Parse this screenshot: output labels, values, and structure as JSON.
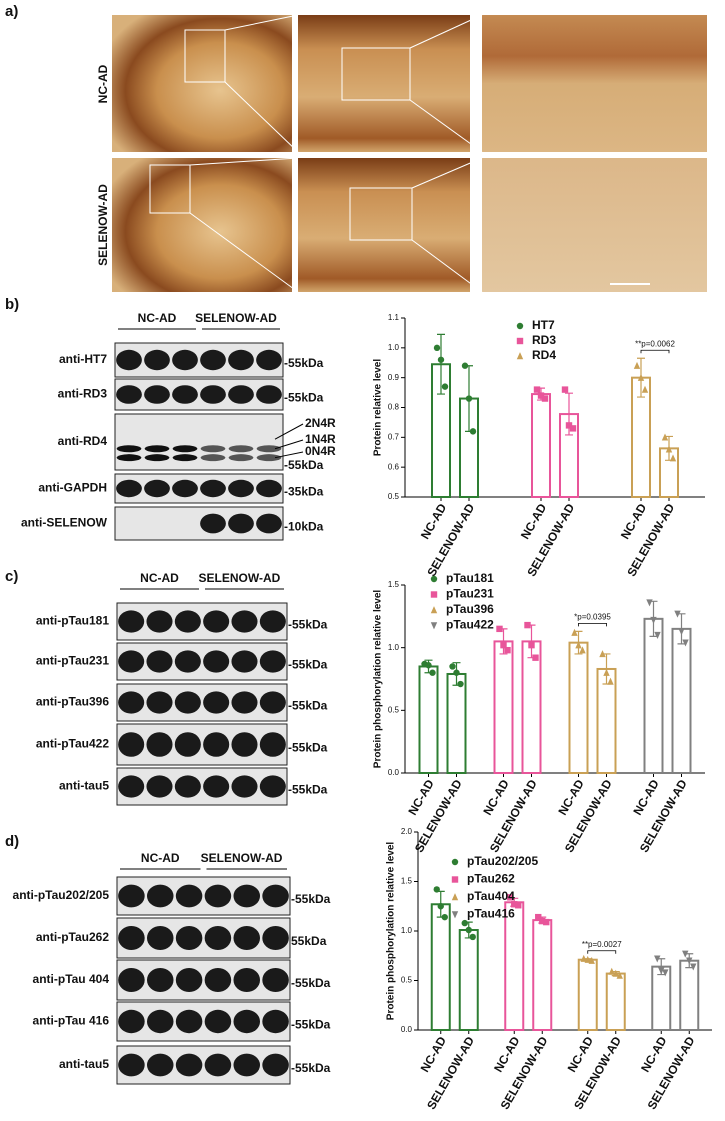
{
  "panel_labels": [
    "a)",
    "b)",
    "c)",
    "d)"
  ],
  "micrographs": {
    "rows": [
      "NC-AD",
      "SELENOW-AD"
    ]
  },
  "blots": [
    {
      "groups": [
        "NC-AD",
        "SELENOW-AD"
      ],
      "rows": [
        {
          "antibody": "anti-HT7",
          "size": "-55kDa"
        },
        {
          "antibody": "anti-RD3",
          "size": "-55kDa"
        },
        {
          "antibody": "anti-RD4",
          "size": "-55kDa",
          "isoforms": [
            "2N4R",
            "1N4R",
            "0N4R"
          ]
        },
        {
          "antibody": "anti-GAPDH",
          "size": "-35kDa"
        },
        {
          "antibody": "anti-SELENOW",
          "size": "-10kDa"
        }
      ]
    },
    {
      "groups": [
        "NC-AD",
        "SELENOW-AD"
      ],
      "rows": [
        {
          "antibody": "anti-pTau181",
          "size": "-55kDa"
        },
        {
          "antibody": "anti-pTau231",
          "size": "-55kDa"
        },
        {
          "antibody": "anti-pTau396",
          "size": "-55kDa"
        },
        {
          "antibody": "anti-pTau422",
          "size": "-55kDa"
        },
        {
          "antibody": "anti-tau5",
          "size": "-55kDa"
        }
      ]
    },
    {
      "groups": [
        "NC-AD",
        "SELENOW-AD"
      ],
      "rows": [
        {
          "antibody": "anti-pTau202/205",
          "size": "-55kDa"
        },
        {
          "antibody": "anti-pTau262",
          "size": "55kDa"
        },
        {
          "antibody": "anti-pTau 404",
          "size": "-55kDa"
        },
        {
          "antibody": "anti-pTau 416",
          "size": "-55kDa"
        },
        {
          "antibody": "anti-tau5",
          "size": "-55kDa"
        }
      ]
    }
  ],
  "chart_data": [
    {
      "type": "bar",
      "y_label": "Protein relative level",
      "annotation": "**p=0.0062",
      "categories": [
        "NC-AD",
        "SELENOW-AD",
        "NC-AD",
        "SELENOW-AD",
        "NC-AD",
        "SELENOW-AD"
      ],
      "ylim": [
        0.5,
        1.1
      ],
      "yticks": [
        0.5,
        0.6,
        0.7,
        0.8,
        0.9,
        {
          "value": 1,
          "label": "1.0"
        },
        1.1
      ],
      "series": [
        {
          "name": "HT7",
          "color": "#2e7d32",
          "marker": "circle",
          "values": [
            0.945,
            0.83,
            null,
            null,
            null,
            null
          ],
          "errors": [
            0.1,
            0.11,
            null,
            null,
            null,
            null
          ],
          "points": [
            [
              1.0,
              0.96,
              0.87
            ],
            [
              0.94,
              0.83,
              0.72
            ],
            null,
            null,
            null,
            null
          ]
        },
        {
          "name": "RD3",
          "color": "#e8559a",
          "marker": "square",
          "values": [
            null,
            null,
            0.845,
            0.778,
            null,
            null
          ],
          "errors": [
            null,
            null,
            0.02,
            0.07,
            null,
            null
          ],
          "points": [
            null,
            null,
            [
              0.86,
              0.84,
              0.83
            ],
            [
              0.86,
              0.74,
              0.73
            ],
            null,
            null
          ]
        },
        {
          "name": "RD4",
          "color": "#c9a055",
          "marker": "triangle",
          "values": [
            null,
            null,
            null,
            null,
            0.9,
            0.663
          ],
          "errors": [
            null,
            null,
            null,
            null,
            0.065,
            0.04
          ],
          "points": [
            null,
            null,
            null,
            null,
            [
              0.94,
              0.9,
              0.86
            ],
            [
              0.7,
              0.66,
              0.63
            ]
          ]
        }
      ]
    },
    {
      "type": "bar",
      "y_label": "Protein phosphorylation relative level",
      "annotation": "*p=0.0395",
      "categories": [
        "NC-AD",
        "SELENOW-AD",
        "NC-AD",
        "SELENOW-AD",
        "NC-AD",
        "SELENOW-AD",
        "NC-AD",
        "SELENOW-AD"
      ],
      "ylim": [
        0,
        1.5
      ],
      "yticks": [
        {
          "value": 0,
          "label": "0.0"
        },
        0.5,
        {
          "value": 1,
          "label": "1.0"
        },
        1.5
      ],
      "series": [
        {
          "name": "pTau181",
          "color": "#2e7d32",
          "marker": "circle",
          "values": [
            0.85,
            0.79,
            null,
            null,
            null,
            null,
            null,
            null
          ],
          "errors": [
            0.05,
            0.09,
            null,
            null,
            null,
            null,
            null,
            null
          ],
          "points": [
            [
              0.87,
              0.86,
              0.8
            ],
            [
              0.85,
              0.8,
              0.71
            ],
            null,
            null,
            null,
            null,
            null,
            null
          ]
        },
        {
          "name": "pTau231",
          "color": "#e8559a",
          "marker": "square",
          "values": [
            null,
            null,
            1.05,
            1.05,
            null,
            null,
            null,
            null
          ],
          "errors": [
            null,
            null,
            0.1,
            0.13,
            null,
            null,
            null,
            null
          ],
          "points": [
            null,
            null,
            [
              1.15,
              1.02,
              0.98
            ],
            [
              1.18,
              1.02,
              0.92
            ],
            null,
            null,
            null,
            null
          ]
        },
        {
          "name": "pTau396",
          "color": "#c9a055",
          "marker": "triangle",
          "values": [
            null,
            null,
            null,
            null,
            1.04,
            0.83,
            null,
            null
          ],
          "errors": [
            null,
            null,
            null,
            null,
            0.09,
            0.12,
            null,
            null
          ],
          "points": [
            null,
            null,
            null,
            null,
            [
              1.12,
              1.02,
              0.98
            ],
            [
              0.95,
              0.8,
              0.73
            ],
            null,
            null
          ]
        },
        {
          "name": "pTau422",
          "color": "#808080",
          "marker": "triangle-down",
          "values": [
            null,
            null,
            null,
            null,
            null,
            null,
            1.23,
            1.15
          ],
          "errors": [
            null,
            null,
            null,
            null,
            null,
            null,
            0.14,
            0.12
          ],
          "points": [
            null,
            null,
            null,
            null,
            null,
            null,
            [
              1.36,
              1.22,
              1.1
            ],
            [
              1.27,
              1.13,
              1.04
            ]
          ]
        }
      ]
    },
    {
      "type": "bar",
      "y_label": "Protein phosphorylation relative level",
      "annotation": "**p=0.0027",
      "categories": [
        "NC-AD",
        "SELENOW-AD",
        "NC-AD",
        "SELENOW-AD",
        "NC-AD",
        "SELENOW-AD",
        "NC-AD",
        "SELENOW-AD"
      ],
      "ylim": [
        0,
        2
      ],
      "yticks": [
        {
          "value": 0,
          "label": "0.0"
        },
        0.5,
        {
          "value": 1,
          "label": "1.0"
        },
        1.5,
        {
          "value": 2,
          "label": "2.0"
        }
      ],
      "series": [
        {
          "name": "pTau202/205",
          "color": "#2e7d32",
          "marker": "circle",
          "values": [
            1.27,
            1.01,
            null,
            null,
            null,
            null,
            null,
            null
          ],
          "errors": [
            0.13,
            0.08,
            null,
            null,
            null,
            null,
            null,
            null
          ],
          "points": [
            [
              1.42,
              1.25,
              1.14
            ],
            [
              1.08,
              1.01,
              0.94
            ],
            null,
            null,
            null,
            null,
            null,
            null
          ]
        },
        {
          "name": "pTau262",
          "color": "#e8559a",
          "marker": "square",
          "values": [
            null,
            null,
            1.29,
            1.11,
            null,
            null,
            null,
            null
          ],
          "errors": [
            null,
            null,
            0.04,
            0.03,
            null,
            null,
            null,
            null
          ],
          "points": [
            null,
            null,
            [
              1.34,
              1.27,
              1.26
            ],
            [
              1.14,
              1.1,
              1.09
            ],
            null,
            null,
            null,
            null
          ]
        },
        {
          "name": "pTau404",
          "color": "#c9a055",
          "marker": "triangle",
          "values": [
            null,
            null,
            null,
            null,
            0.71,
            0.57,
            null,
            null
          ],
          "errors": [
            null,
            null,
            null,
            null,
            0.01,
            0.02,
            null,
            null
          ],
          "points": [
            null,
            null,
            null,
            null,
            [
              0.72,
              0.71,
              0.7
            ],
            [
              0.59,
              0.57,
              0.55
            ],
            null,
            null
          ]
        },
        {
          "name": "pTau416",
          "color": "#808080",
          "marker": "triangle-down",
          "values": [
            null,
            null,
            null,
            null,
            null,
            null,
            0.64,
            0.7
          ],
          "errors": [
            null,
            null,
            null,
            null,
            null,
            null,
            0.08,
            0.07
          ],
          "points": [
            null,
            null,
            null,
            null,
            null,
            null,
            [
              0.72,
              0.6,
              0.58
            ],
            [
              0.77,
              0.7,
              0.64
            ]
          ]
        }
      ]
    }
  ]
}
